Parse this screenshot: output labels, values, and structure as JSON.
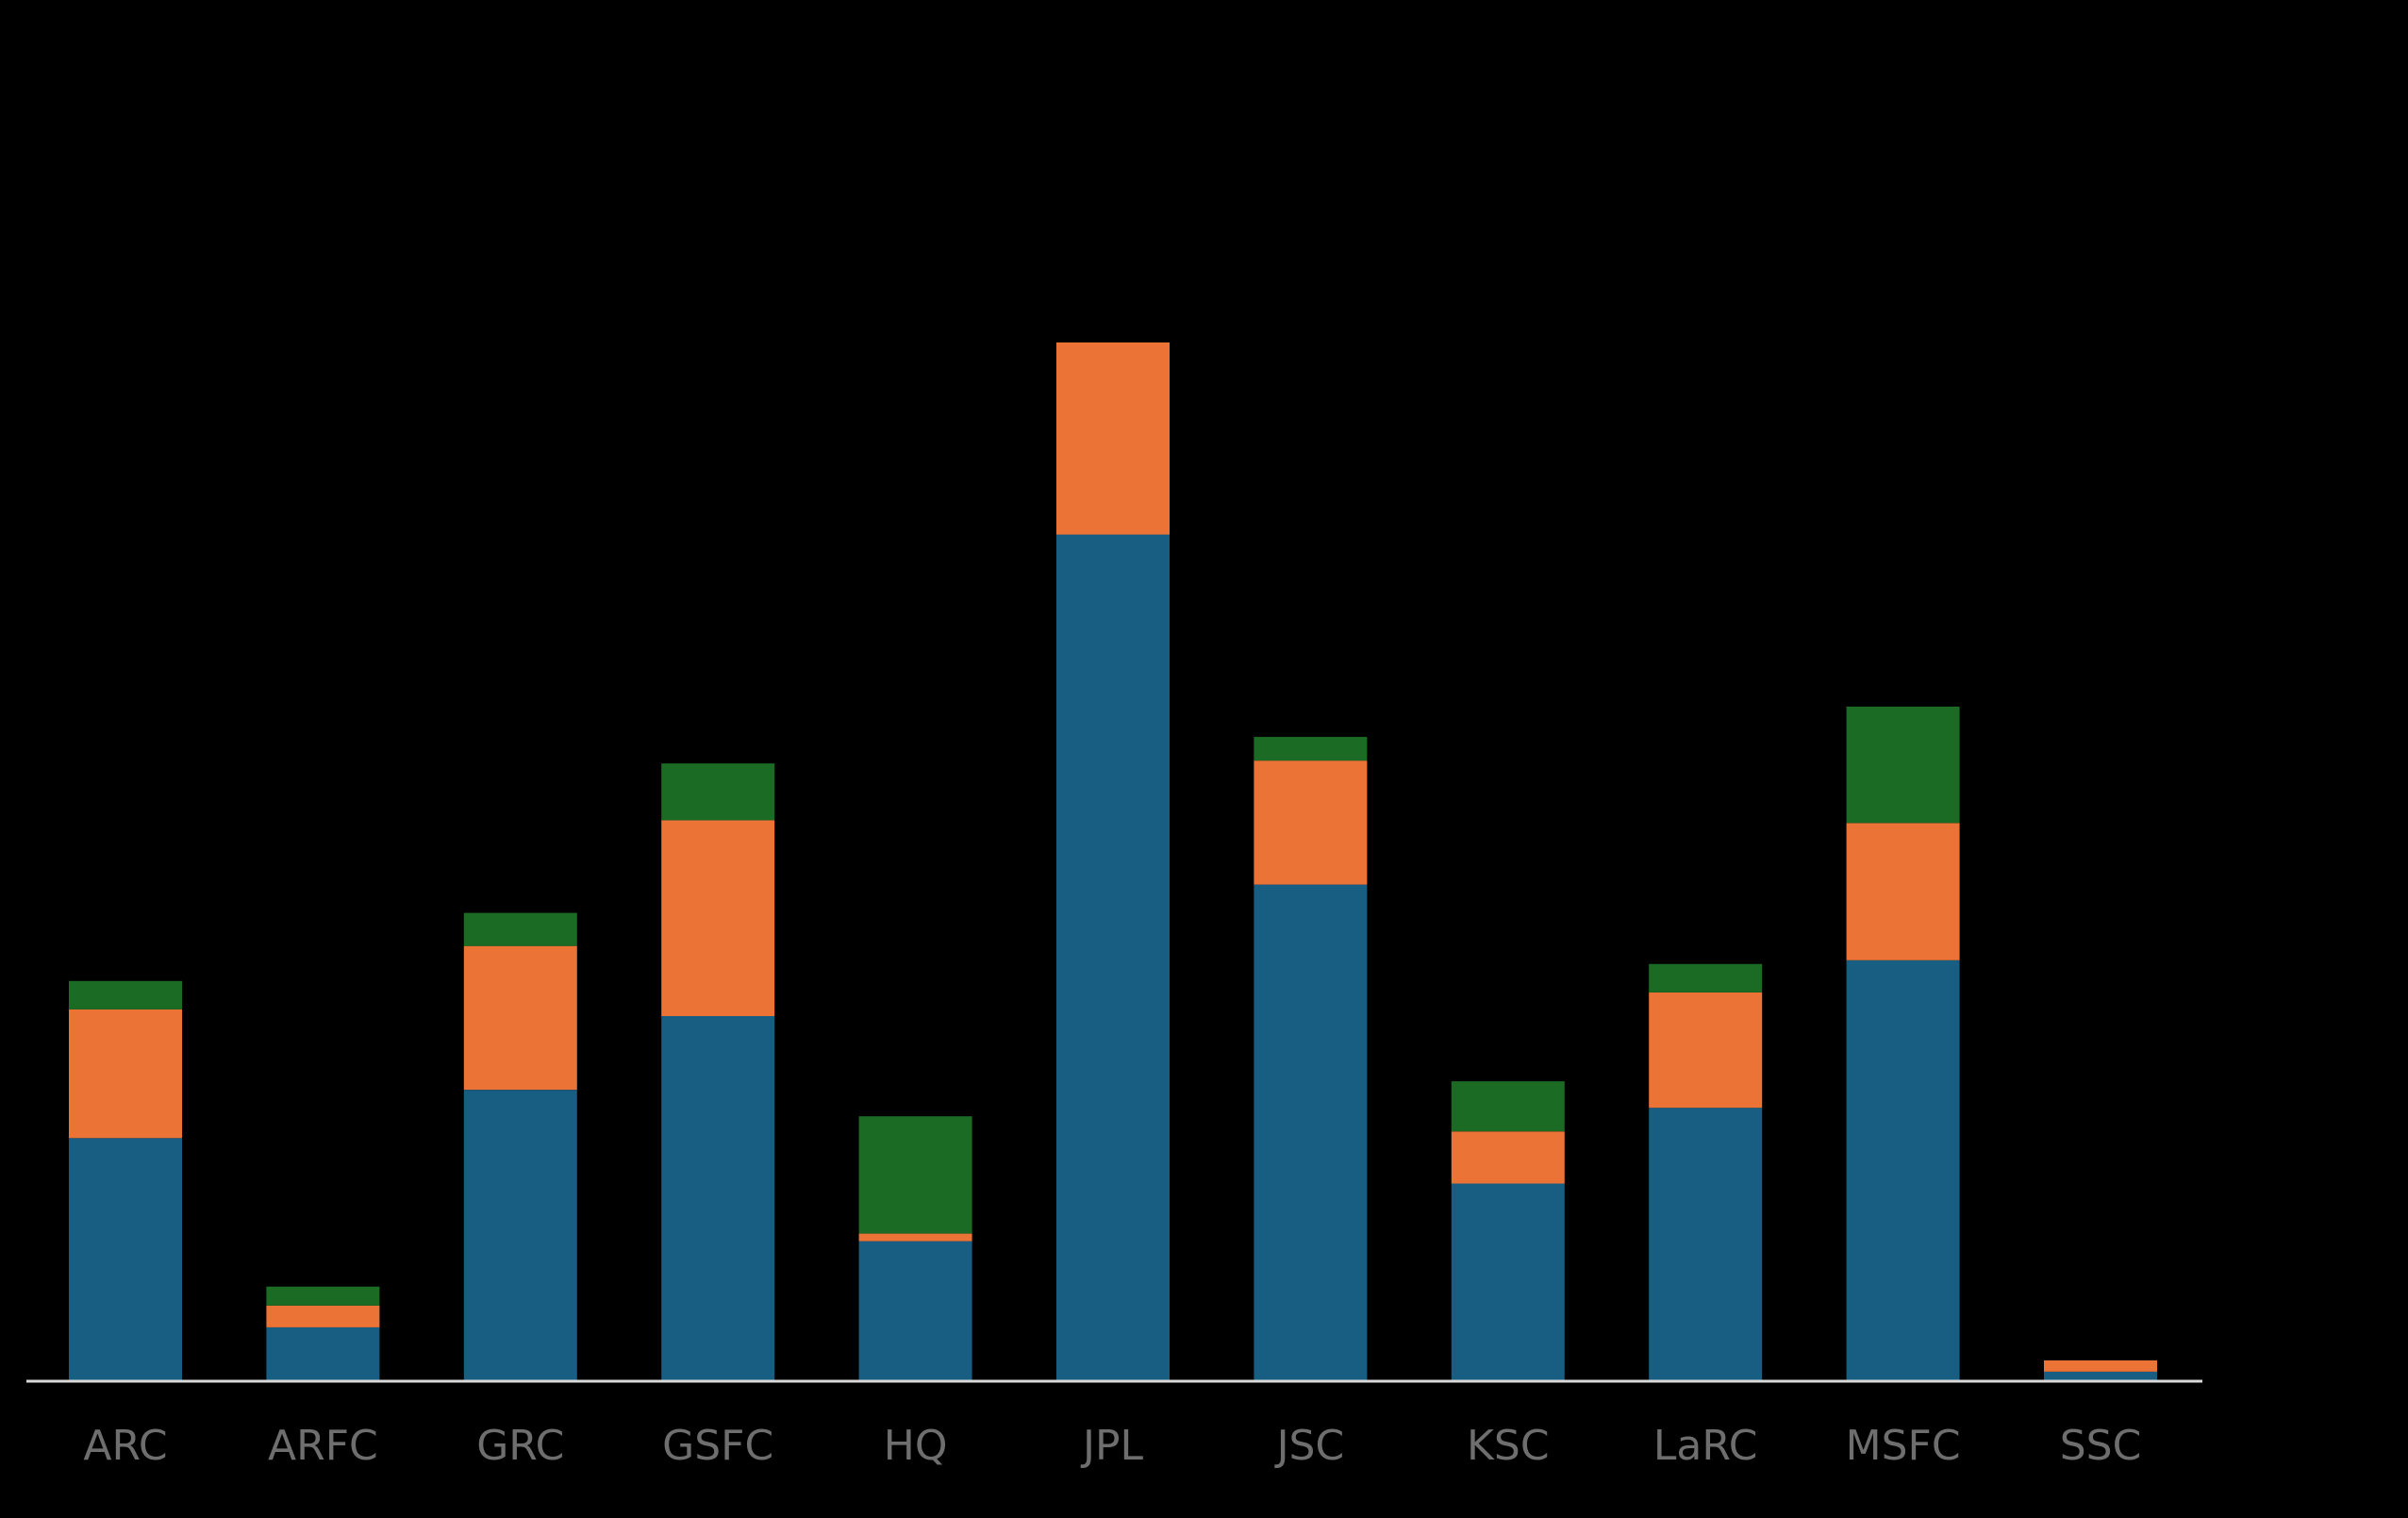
{
  "chart_data": {
    "type": "bar",
    "stacked": true,
    "categories": [
      "ARC",
      "ARFC",
      "GRC",
      "GSFC",
      "HQ",
      "JPL",
      "JSC",
      "KSC",
      "LaRC",
      "MSFC",
      "SSC"
    ],
    "series": [
      {
        "color": "#175e82",
        "values": [
          257,
          57,
          308,
          386,
          148,
          895,
          525,
          209,
          289,
          445,
          10
        ]
      },
      {
        "color": "#eb7336",
        "values": [
          136,
          23,
          152,
          207,
          8,
          203,
          131,
          55,
          122,
          145,
          12
        ]
      },
      {
        "color": "#1c6b25",
        "values": [
          30,
          20,
          35,
          60,
          124,
          0,
          25,
          53,
          30,
          123,
          0
        ]
      }
    ],
    "title": "",
    "xlabel": "",
    "ylabel": "",
    "ylim": [
      0,
      1460
    ],
    "grid": false,
    "legend": "none"
  }
}
